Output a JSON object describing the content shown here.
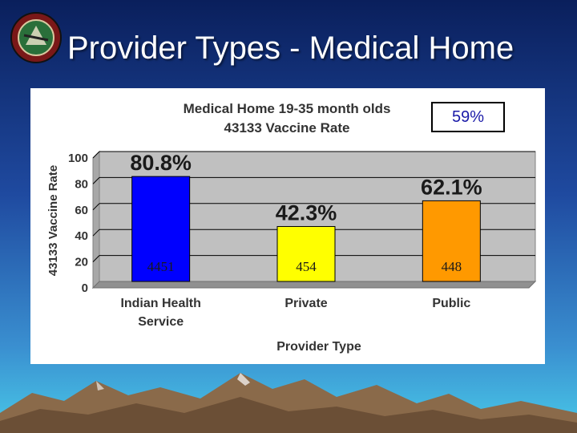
{
  "slide": {
    "title": "Provider Types - Medical Home"
  },
  "callout": {
    "text": "59%"
  },
  "colors": {
    "plot_background": "#c0c0c0",
    "bar_indian_health_service": "#0000ff",
    "bar_private": "#ffff00",
    "bar_public": "#ff9900"
  },
  "chart_data": {
    "type": "bar",
    "title_lines": [
      "Medical Home 19-35 month olds",
      "43133 Vaccine Rate"
    ],
    "xlabel": "Provider Type",
    "ylabel": "43133 Vaccine Rate",
    "ylim": [
      0,
      100
    ],
    "yticks": [
      0,
      20,
      40,
      60,
      80,
      100
    ],
    "grid": true,
    "categories": [
      {
        "label_lines": [
          "Indian Health",
          "Service"
        ],
        "value": 80.8,
        "value_label": "80.8%",
        "count_label": "4451",
        "color": "#0000ff"
      },
      {
        "label_lines": [
          "Private"
        ],
        "value": 42.3,
        "value_label": "42.3%",
        "count_label": "454",
        "color": "#ffff00"
      },
      {
        "label_lines": [
          "Public"
        ],
        "value": 62.1,
        "value_label": "62.1%",
        "count_label": "448",
        "color": "#ff9900"
      }
    ]
  }
}
